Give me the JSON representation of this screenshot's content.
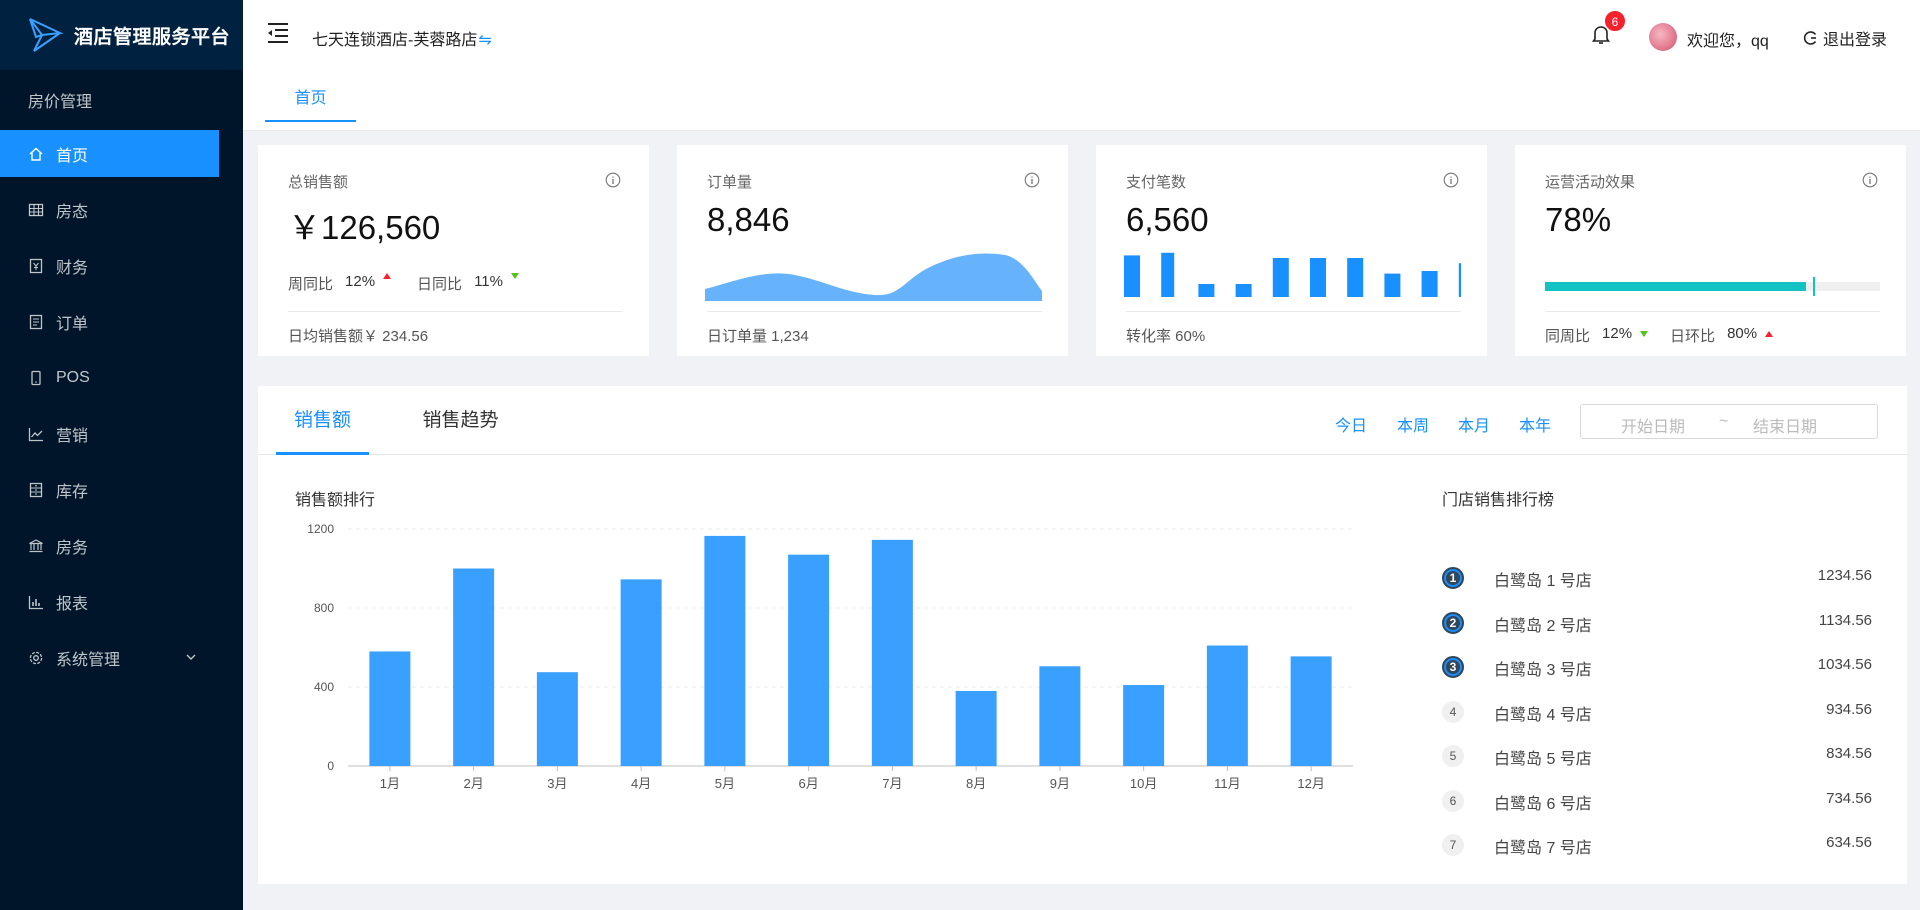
{
  "app": {
    "title": "酒店管理服务平台"
  },
  "sidebar": {
    "section": "房价管理",
    "items": [
      {
        "label": "首页",
        "icon": "home-icon",
        "active": true
      },
      {
        "label": "房态",
        "icon": "grid-icon"
      },
      {
        "label": "财务",
        "icon": "finance-icon"
      },
      {
        "label": "订单",
        "icon": "order-icon"
      },
      {
        "label": "POS",
        "icon": "mobile-icon"
      },
      {
        "label": "营销",
        "icon": "line-chart-icon"
      },
      {
        "label": "库存",
        "icon": "inventory-icon"
      },
      {
        "label": "房务",
        "icon": "bank-icon"
      },
      {
        "label": "报表",
        "icon": "bar-chart-icon"
      },
      {
        "label": "系统管理",
        "icon": "gear-icon",
        "expandable": true
      }
    ]
  },
  "header": {
    "hotel_name": "七天连锁酒店-芙蓉路店",
    "switch_glyph": "⇋",
    "notifications": "6",
    "welcome": "欢迎您，qq",
    "logout": "退出登录"
  },
  "tabs": {
    "home": "首页"
  },
  "cards": {
    "sales": {
      "title": "总销售额",
      "value": "￥126,560",
      "wow_label": "周同比",
      "wow_value": "12%",
      "dod_label": "日同比",
      "dod_value": "11%",
      "footer": "日均销售额￥ 234.56"
    },
    "orders": {
      "title": "订单量",
      "value": "8,846",
      "footer": "日订单量 1,234"
    },
    "payments": {
      "title": "支付笔数",
      "value": "6,560",
      "footer": "转化率 60%",
      "bars": [
        8.0,
        8.5,
        2.5,
        2.5,
        7.5,
        7.5,
        7.5,
        4.5,
        5.0,
        6.5
      ]
    },
    "campaign": {
      "title": "运营活动效果",
      "value": "78%",
      "progress": 0.78,
      "target": 0.8,
      "wow_label": "同周比",
      "wow_value": "12%",
      "dod_label": "日环比",
      "dod_value": "80%"
    }
  },
  "panel": {
    "tabs": [
      "销售额",
      "销售趋势"
    ],
    "ranges": [
      "今日",
      "本周",
      "本月",
      "本年"
    ],
    "start_placeholder": "开始日期",
    "separator": "~",
    "end_placeholder": "结束日期",
    "chart_title": "销售额排行",
    "rank_title": "门店销售排行榜",
    "ranking": [
      {
        "rank": "1",
        "name": "白鹭岛 1 号店",
        "value": "1234.56"
      },
      {
        "rank": "2",
        "name": "白鹭岛 2 号店",
        "value": "1134.56"
      },
      {
        "rank": "3",
        "name": "白鹭岛 3 号店",
        "value": "1034.56"
      },
      {
        "rank": "4",
        "name": "白鹭岛 4 号店",
        "value": "934.56"
      },
      {
        "rank": "5",
        "name": "白鹭岛 5 号店",
        "value": "834.56"
      },
      {
        "rank": "6",
        "name": "白鹭岛 6 号店",
        "value": "734.56"
      },
      {
        "rank": "7",
        "name": "白鹭岛 7 号店",
        "value": "634.56"
      }
    ]
  },
  "colors": {
    "primary": "#1890ff",
    "bar": "#3aa0ff",
    "sidebar": "#001529",
    "progress": "#13c2c2",
    "up": "#f5222d",
    "down": "#52c41a"
  },
  "chart_data": {
    "type": "bar",
    "title": "销售额排行",
    "categories": [
      "1月",
      "2月",
      "3月",
      "4月",
      "5月",
      "6月",
      "7月",
      "8月",
      "9月",
      "10月",
      "11月",
      "12月"
    ],
    "values": [
      580,
      1000,
      475,
      945,
      1165,
      1070,
      1145,
      380,
      505,
      410,
      610,
      555
    ],
    "ylim": [
      0,
      1200
    ],
    "yticks": [
      0,
      400,
      800,
      1200
    ],
    "grid": true
  }
}
